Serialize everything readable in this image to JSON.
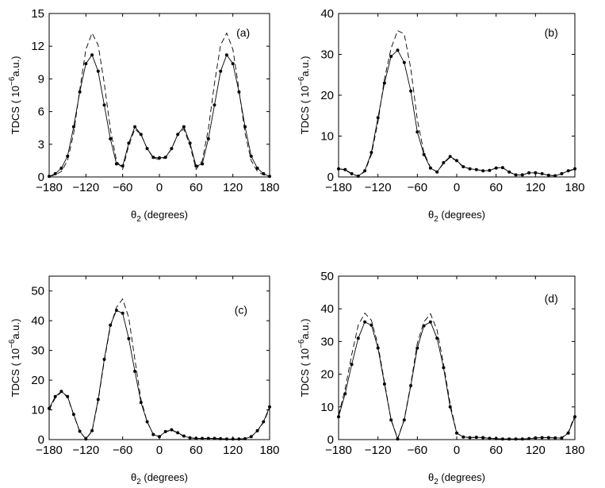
{
  "chart_data": [
    {
      "type": "line",
      "panel_label": "(a)",
      "xlabel": "θ",
      "xlabel_sub": "2",
      "xlabel_rest": " (degrees)",
      "ylabel_pre": "TDCS ( 10",
      "ylabel_exp": "−6",
      "ylabel_post": "a.u.)",
      "xlim": [
        -180,
        180
      ],
      "ylim": [
        0,
        15
      ],
      "xticks": [
        -180,
        -120,
        -60,
        0,
        60,
        120,
        180
      ],
      "xtick_labels": [
        "−180",
        "−120",
        "−60",
        "0",
        "60",
        "120",
        "180"
      ],
      "yticks": [
        0,
        3,
        6,
        9,
        12,
        15
      ],
      "ytick_labels": [
        "0",
        "3",
        "6",
        "9",
        "12",
        "15"
      ],
      "series": [
        {
          "name": "solid with dots",
          "style": "solid-dots",
          "x": [
            -180,
            -170,
            -160,
            -150,
            -140,
            -130,
            -120,
            -110,
            -100,
            -90,
            -80,
            -70,
            -60,
            -50,
            -40,
            -30,
            -20,
            -10,
            0,
            10,
            20,
            30,
            40,
            50,
            60,
            70,
            80,
            90,
            100,
            110,
            120,
            130,
            140,
            150,
            160,
            170,
            180
          ],
          "y": [
            0.05,
            0.3,
            0.8,
            1.9,
            4.6,
            7.8,
            10.4,
            11.2,
            9.7,
            6.6,
            3.5,
            1.2,
            1.0,
            3.1,
            4.6,
            3.9,
            2.6,
            1.8,
            1.75,
            1.8,
            2.6,
            3.9,
            4.6,
            3.1,
            1.0,
            1.2,
            3.5,
            6.6,
            9.7,
            11.2,
            10.4,
            7.8,
            4.6,
            1.9,
            0.8,
            0.3,
            0.05
          ]
        },
        {
          "name": "dashed",
          "style": "dashed",
          "x": [
            -180,
            -170,
            -160,
            -150,
            -140,
            -130,
            -120,
            -110,
            -100,
            -90,
            -80,
            -70,
            -60,
            -50,
            -40,
            -30,
            -20,
            -10,
            0,
            10,
            20,
            30,
            40,
            50,
            60,
            70,
            80,
            90,
            100,
            110,
            120,
            130,
            140,
            150,
            160,
            170,
            180
          ],
          "y": [
            0.05,
            0.2,
            0.5,
            1.5,
            4.0,
            8.0,
            11.7,
            13.2,
            12.1,
            8.6,
            4.4,
            1.5,
            0.7,
            2.9,
            4.4,
            3.9,
            2.6,
            1.75,
            1.6,
            1.75,
            2.6,
            3.9,
            4.4,
            2.9,
            0.7,
            1.5,
            4.4,
            8.6,
            12.1,
            13.2,
            11.7,
            8.0,
            4.0,
            1.5,
            0.5,
            0.2,
            0.05
          ]
        }
      ]
    },
    {
      "type": "line",
      "panel_label": "(b)",
      "xlabel": "θ",
      "xlabel_sub": "2",
      "xlabel_rest": " (degrees)",
      "ylabel_pre": "TDCS ( 10",
      "ylabel_exp": "−6",
      "ylabel_post": "a.u.)",
      "xlim": [
        -180,
        180
      ],
      "ylim": [
        0,
        40
      ],
      "xticks": [
        -180,
        -120,
        -60,
        0,
        60,
        120,
        180
      ],
      "xtick_labels": [
        "−180",
        "−120",
        "−60",
        "0",
        "60",
        "120",
        "180"
      ],
      "yticks": [
        0,
        10,
        20,
        30,
        40
      ],
      "ytick_labels": [
        "0",
        "10",
        "20",
        "30",
        "40"
      ],
      "series": [
        {
          "name": "solid with dots",
          "style": "solid-dots",
          "x": [
            -180,
            -170,
            -160,
            -150,
            -140,
            -130,
            -120,
            -110,
            -100,
            -90,
            -80,
            -70,
            -60,
            -50,
            -40,
            -30,
            -20,
            -10,
            0,
            10,
            20,
            30,
            40,
            50,
            60,
            70,
            80,
            90,
            100,
            110,
            120,
            130,
            140,
            150,
            160,
            170,
            180
          ],
          "y": [
            2.0,
            1.8,
            0.8,
            0.2,
            1.5,
            6.0,
            14.5,
            23.0,
            29.5,
            31.0,
            28.0,
            21.0,
            11.0,
            5.5,
            2.2,
            1.2,
            3.5,
            5.0,
            4.0,
            2.5,
            2.0,
            1.8,
            1.5,
            1.6,
            2.2,
            2.3,
            1.2,
            0.5,
            0.5,
            1.0,
            1.0,
            0.8,
            0.4,
            0.3,
            0.8,
            1.5,
            2.0
          ]
        },
        {
          "name": "dashed",
          "style": "dashed",
          "x": [
            -180,
            -170,
            -160,
            -150,
            -140,
            -130,
            -120,
            -110,
            -100,
            -90,
            -80,
            -70,
            -60,
            -50,
            -40,
            -30,
            -20,
            -10,
            0,
            10,
            20,
            30,
            40,
            50,
            60,
            70,
            80,
            90,
            100,
            110,
            120,
            130,
            140,
            150,
            160,
            170,
            180
          ],
          "y": [
            2.0,
            1.7,
            0.7,
            0.2,
            1.3,
            5.5,
            13.5,
            24.0,
            31.5,
            35.8,
            35.0,
            26.5,
            14.0,
            6.0,
            2.3,
            1.2,
            3.3,
            4.8,
            3.9,
            2.4,
            2.0,
            1.8,
            1.5,
            1.6,
            2.2,
            2.3,
            1.2,
            0.5,
            0.5,
            1.0,
            1.0,
            0.8,
            0.4,
            0.3,
            0.8,
            1.4,
            1.9
          ]
        }
      ]
    },
    {
      "type": "line",
      "panel_label": "(c)",
      "xlabel": "θ",
      "xlabel_sub": "2",
      "xlabel_rest": " (degrees)",
      "ylabel_pre": "TDCS ( 10",
      "ylabel_exp": "−6",
      "ylabel_post": "a.u.)",
      "xlim": [
        -180,
        180
      ],
      "ylim": [
        0,
        55
      ],
      "xticks": [
        -180,
        -120,
        -60,
        0,
        60,
        120,
        180
      ],
      "xtick_labels": [
        "−180",
        "−120",
        "−60",
        "0",
        "60",
        "120",
        "180"
      ],
      "yticks": [
        0,
        10,
        20,
        30,
        40,
        50
      ],
      "ytick_labels": [
        "0",
        "10",
        "20",
        "30",
        "40",
        "50"
      ],
      "series": [
        {
          "name": "solid with dots",
          "style": "solid-dots",
          "x": [
            -180,
            -170,
            -160,
            -150,
            -140,
            -130,
            -120,
            -110,
            -100,
            -90,
            -80,
            -70,
            -60,
            -50,
            -40,
            -30,
            -20,
            -10,
            0,
            10,
            20,
            30,
            40,
            50,
            60,
            70,
            80,
            90,
            100,
            110,
            120,
            130,
            140,
            150,
            160,
            170,
            180
          ],
          "y": [
            10.5,
            14.5,
            16.2,
            14.5,
            8.5,
            2.8,
            0.2,
            3.0,
            13.5,
            27.0,
            38.5,
            43.5,
            42.5,
            34.0,
            23.0,
            12.5,
            6.0,
            1.7,
            1.0,
            2.7,
            3.3,
            2.3,
            1.2,
            0.6,
            0.4,
            0.4,
            0.4,
            0.4,
            0.3,
            0.2,
            0.2,
            0.2,
            0.3,
            1.0,
            3.0,
            6.0,
            11.0
          ]
        },
        {
          "name": "dashed",
          "style": "dashed",
          "x": [
            -180,
            -170,
            -160,
            -150,
            -140,
            -130,
            -120,
            -110,
            -100,
            -90,
            -80,
            -70,
            -60,
            -50,
            -40,
            -30,
            -20,
            -10,
            0,
            10,
            20,
            30,
            40,
            50,
            60,
            70,
            80,
            90,
            100,
            110,
            120,
            130,
            140,
            150,
            160,
            170,
            180
          ],
          "y": [
            10.0,
            14.0,
            16.0,
            14.3,
            8.3,
            2.7,
            0.2,
            2.8,
            13.0,
            26.5,
            38.0,
            44.5,
            47.3,
            41.0,
            27.0,
            13.5,
            6.0,
            1.7,
            1.0,
            2.6,
            3.2,
            2.2,
            1.1,
            0.6,
            0.4,
            0.4,
            0.4,
            0.4,
            0.3,
            0.2,
            0.2,
            0.2,
            0.3,
            1.0,
            2.8,
            5.8,
            10.5
          ]
        }
      ]
    },
    {
      "type": "line",
      "panel_label": "(d)",
      "xlabel": "θ",
      "xlabel_sub": "2",
      "xlabel_rest": " (degrees)",
      "ylabel_pre": "TDCS ( 10",
      "ylabel_exp": "−6",
      "ylabel_post": "a.u.)",
      "xlim": [
        -180,
        180
      ],
      "ylim": [
        0,
        50
      ],
      "xticks": [
        -180,
        -120,
        -60,
        0,
        60,
        120,
        180
      ],
      "xtick_labels": [
        "−180",
        "−120",
        "−60",
        "0",
        "60",
        "120",
        "180"
      ],
      "yticks": [
        0,
        10,
        20,
        30,
        40,
        50
      ],
      "ytick_labels": [
        "0",
        "10",
        "20",
        "30",
        "40",
        "50"
      ],
      "series": [
        {
          "name": "solid with dots",
          "style": "solid-dots",
          "x": [
            -180,
            -170,
            -160,
            -150,
            -140,
            -130,
            -120,
            -110,
            -100,
            -90,
            -80,
            -70,
            -60,
            -50,
            -40,
            -30,
            -20,
            -10,
            0,
            10,
            20,
            30,
            40,
            50,
            60,
            70,
            80,
            90,
            100,
            110,
            120,
            130,
            140,
            150,
            160,
            170,
            180
          ],
          "y": [
            7.0,
            14.0,
            23.0,
            31.0,
            36.0,
            35.0,
            28.0,
            17.0,
            6.0,
            0.2,
            6.0,
            16.5,
            28.0,
            34.8,
            36.0,
            31.0,
            22.0,
            10.0,
            2.0,
            0.8,
            0.6,
            0.7,
            0.6,
            0.4,
            0.3,
            0.2,
            0.2,
            0.2,
            0.2,
            0.3,
            0.5,
            0.6,
            0.6,
            0.5,
            0.5,
            2.0,
            7.0
          ]
        },
        {
          "name": "dashed",
          "style": "dashed",
          "x": [
            -180,
            -170,
            -160,
            -150,
            -140,
            -130,
            -120,
            -110,
            -100,
            -90,
            -80,
            -70,
            -60,
            -50,
            -40,
            -30,
            -20,
            -10,
            0,
            10,
            20,
            30,
            40,
            50,
            60,
            70,
            80,
            90,
            100,
            110,
            120,
            130,
            140,
            150,
            160,
            170,
            180
          ],
          "y": [
            7.5,
            15.5,
            26.0,
            35.0,
            38.7,
            36.5,
            29.0,
            17.5,
            6.2,
            0.3,
            6.2,
            17.0,
            29.5,
            36.0,
            38.5,
            33.5,
            23.0,
            11.0,
            2.0,
            0.8,
            0.6,
            0.7,
            0.6,
            0.4,
            0.3,
            0.2,
            0.2,
            0.2,
            0.2,
            0.3,
            0.5,
            0.6,
            0.6,
            0.5,
            0.5,
            2.2,
            7.5
          ]
        }
      ]
    }
  ]
}
